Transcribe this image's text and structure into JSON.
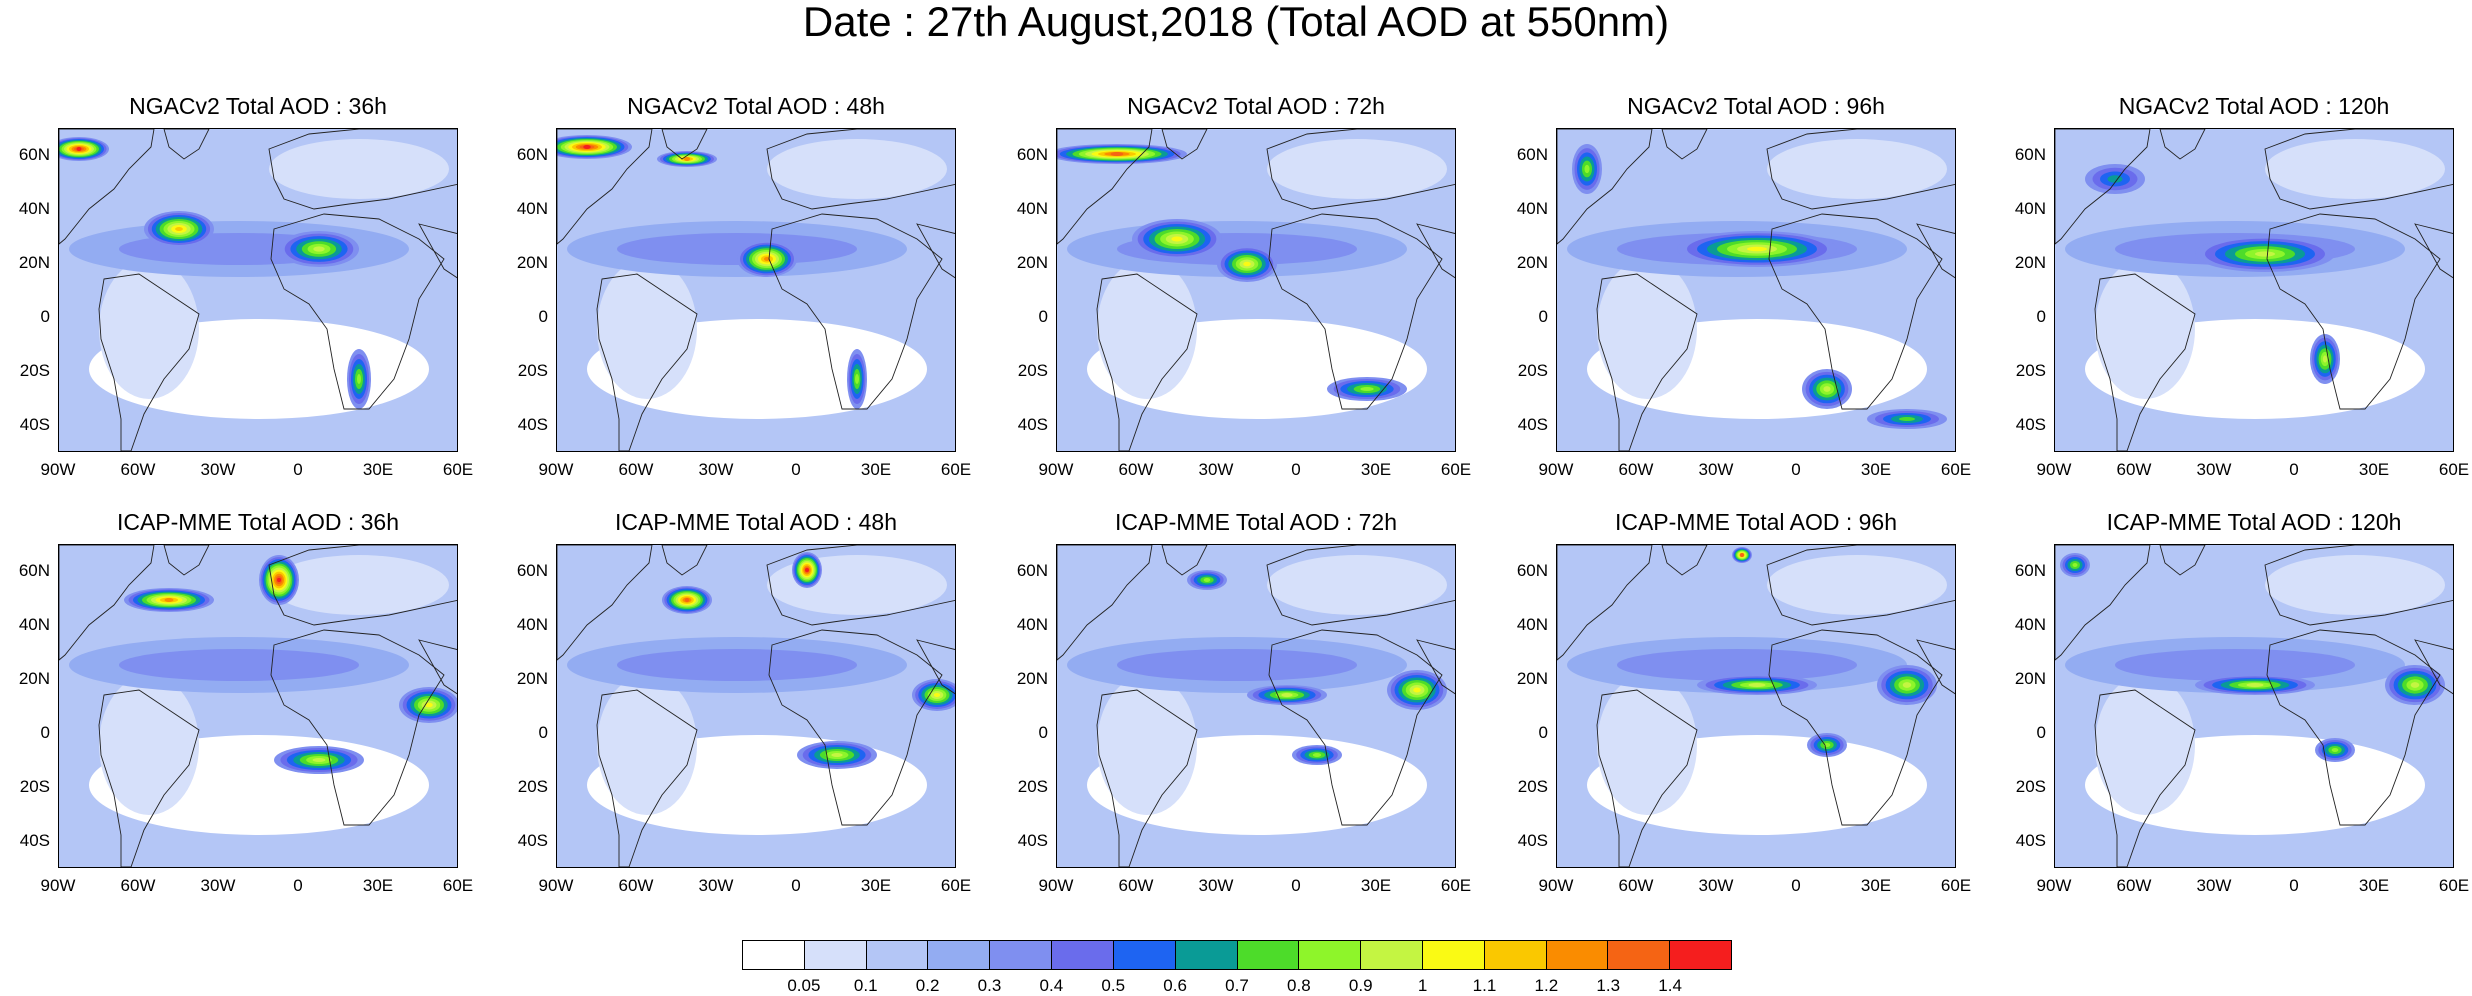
{
  "title": "Date : 27th August,2018 (Total AOD at 550nm)",
  "panels": [
    {
      "title": "NGACv2 Total AOD : 36h",
      "model": "NGACv2",
      "lead": "36h"
    },
    {
      "title": "NGACv2 Total AOD : 48h",
      "model": "NGACv2",
      "lead": "48h"
    },
    {
      "title": "NGACv2 Total AOD : 72h",
      "model": "NGACv2",
      "lead": "72h"
    },
    {
      "title": "NGACv2 Total AOD : 96h",
      "model": "NGACv2",
      "lead": "96h"
    },
    {
      "title": "NGACv2 Total AOD : 120h",
      "model": "NGACv2",
      "lead": "120h"
    },
    {
      "title": "ICAP-MME Total AOD : 36h",
      "model": "ICAP-MME",
      "lead": "36h"
    },
    {
      "title": "ICAP-MME Total AOD : 48h",
      "model": "ICAP-MME",
      "lead": "48h"
    },
    {
      "title": "ICAP-MME Total AOD : 72h",
      "model": "ICAP-MME",
      "lead": "72h"
    },
    {
      "title": "ICAP-MME Total AOD : 96h",
      "model": "ICAP-MME",
      "lead": "96h"
    },
    {
      "title": "ICAP-MME Total AOD : 120h",
      "model": "ICAP-MME",
      "lead": "120h"
    }
  ],
  "lat_ticks": [
    "60N",
    "40N",
    "20N",
    "0",
    "20S",
    "40S"
  ],
  "lon_ticks": [
    "90W",
    "60W",
    "30W",
    "0",
    "30E",
    "60E"
  ],
  "map_extent": {
    "lon": [
      -90,
      60
    ],
    "lat": [
      -50,
      70
    ]
  },
  "colorbar": {
    "labels": [
      "0.05",
      "0.1",
      "0.2",
      "0.3",
      "0.4",
      "0.5",
      "0.6",
      "0.7",
      "0.8",
      "0.9",
      "1",
      "1.1",
      "1.2",
      "1.3",
      "1.4"
    ],
    "colors": [
      "#ffffff",
      "#d6e0fa",
      "#b4c6f6",
      "#93acf2",
      "#7f8ff0",
      "#6a6cec",
      "#1e64f2",
      "#0a9b96",
      "#4ddc2a",
      "#8ef52a",
      "#c4f542",
      "#fafa14",
      "#fac800",
      "#fa8c00",
      "#f56414",
      "#f51e1e"
    ]
  }
}
